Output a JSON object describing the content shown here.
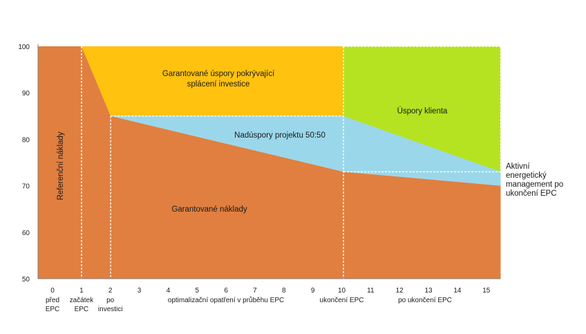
{
  "chart_data": {
    "type": "area",
    "title": "",
    "xlabel": "",
    "ylabel": "",
    "xlim": [
      0,
      15
    ],
    "ylim": [
      50,
      100
    ],
    "y_ticks": [
      50,
      60,
      70,
      80,
      90,
      100
    ],
    "x_ticks": [
      0,
      1,
      2,
      3,
      4,
      5,
      6,
      7,
      8,
      9,
      10,
      11,
      12,
      13,
      14,
      15
    ],
    "grid": false,
    "legend": "none",
    "phase_labels": [
      {
        "x": 0,
        "lines": [
          "před",
          "EPC"
        ]
      },
      {
        "x": 1,
        "lines": [
          "začátek",
          "EPC"
        ]
      },
      {
        "x": 2,
        "lines": [
          "po",
          "investici"
        ]
      },
      {
        "x": 6,
        "lines": [
          "optimalizační opatření v průběhu EPC"
        ]
      },
      {
        "x": 10,
        "lines": [
          "ukončení EPC"
        ]
      },
      {
        "x": 13,
        "lines": [
          "po ukončení EPC"
        ]
      }
    ],
    "series": [
      {
        "region": "garantovane_naklady",
        "color": "#e07f40",
        "x": [
          0,
          1,
          2,
          10,
          15
        ],
        "upper": [
          100,
          100,
          85,
          73,
          70
        ]
      },
      {
        "region": "garantovane_uspory",
        "color": "#ffc20e",
        "x": [
          1,
          2,
          10
        ],
        "lower": [
          100,
          85,
          85
        ],
        "upper": [
          100,
          100,
          100
        ]
      },
      {
        "region": "naduspory",
        "color": "#9bd7ea",
        "x": [
          2,
          10,
          15
        ],
        "lower": [
          85,
          73,
          70
        ],
        "upper": [
          85,
          85,
          73
        ]
      },
      {
        "region": "uspory_klienta",
        "color": "#b5e321",
        "x": [
          10,
          15
        ],
        "lower": [
          73,
          73
        ],
        "upper": [
          100,
          100
        ]
      }
    ],
    "annotations": {
      "referencni": "Referenční náklady",
      "garantovane_naklady": "Garantované náklady",
      "garantovane_uspory_1": "Garantované úspory pokrývající",
      "garantovane_uspory_2": "splácení investice",
      "naduspory": "Nadúspory projektu 50:50",
      "uspory_klienta": "Úspory klienta",
      "aktivni": [
        "Aktivní",
        "energetický",
        "management po",
        "ukončení EPC"
      ]
    }
  }
}
